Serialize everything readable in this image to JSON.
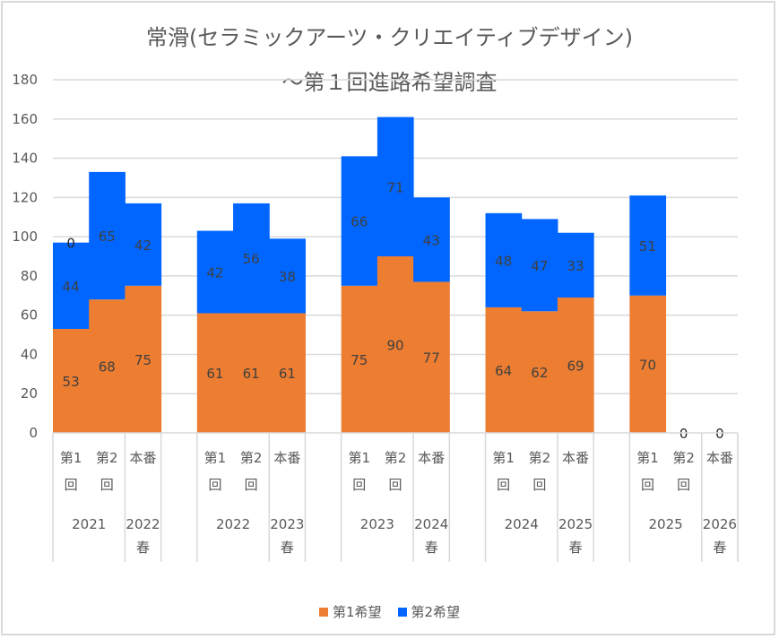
{
  "chart_data": {
    "type": "bar",
    "stacked": true,
    "title": "常滑(セラミックアーツ・クリエイティブデザイン)",
    "subtitle": "～第１回進路希望調査",
    "xlabel": "",
    "ylabel": "",
    "ylim": [
      0,
      180
    ],
    "yticks": [
      0,
      20,
      40,
      60,
      80,
      100,
      120,
      140,
      160,
      180
    ],
    "grid": true,
    "legend_position": "bottom",
    "groups": [
      {
        "year_label": "2021",
        "final_label": "2022\n春",
        "final_line1": "2022",
        "final_line2": "春"
      },
      {
        "year_label": "2022",
        "final_label": "2023\n春",
        "final_line1": "2023",
        "final_line2": "春"
      },
      {
        "year_label": "2023",
        "final_label": "2024\n春",
        "final_line1": "2024",
        "final_line2": "春"
      },
      {
        "year_label": "2024",
        "final_label": "2025\n春",
        "final_line1": "2025",
        "final_line2": "春"
      },
      {
        "year_label": "2025",
        "final_label": "2026\n春",
        "final_line1": "2026",
        "final_line2": "春"
      }
    ],
    "subcategories": [
      {
        "line1": "第1",
        "line2": "回"
      },
      {
        "line1": "第2",
        "line2": "回"
      },
      {
        "line1": "本番",
        "line2": ""
      }
    ],
    "categories": [
      "2021 第1回",
      "2021 第2回",
      "2022春 本番",
      "2022 第1回",
      "2022 第2回",
      "2023春 本番",
      "2023 第1回",
      "2023 第2回",
      "2024春 本番",
      "2024 第1回",
      "2024 第2回",
      "2025春 本番",
      "2025 第1回",
      "2025 第2回",
      "2026春 本番"
    ],
    "series": [
      {
        "name": "第1希望",
        "color": "#ED7D31",
        "values": [
          53,
          68,
          75,
          61,
          61,
          61,
          75,
          90,
          77,
          64,
          62,
          69,
          70,
          null,
          null
        ]
      },
      {
        "name": "第2希望",
        "color": "#0066FF",
        "values": [
          44,
          65,
          42,
          42,
          56,
          38,
          66,
          71,
          43,
          48,
          47,
          33,
          51,
          null,
          null
        ]
      }
    ],
    "extra_labels": [
      {
        "category_index": 0,
        "text": "0",
        "at_value": 97
      },
      {
        "category_index": 13,
        "text": "0",
        "at_value": 0
      },
      {
        "category_index": 14,
        "text": "0",
        "at_value": 0
      }
    ]
  }
}
